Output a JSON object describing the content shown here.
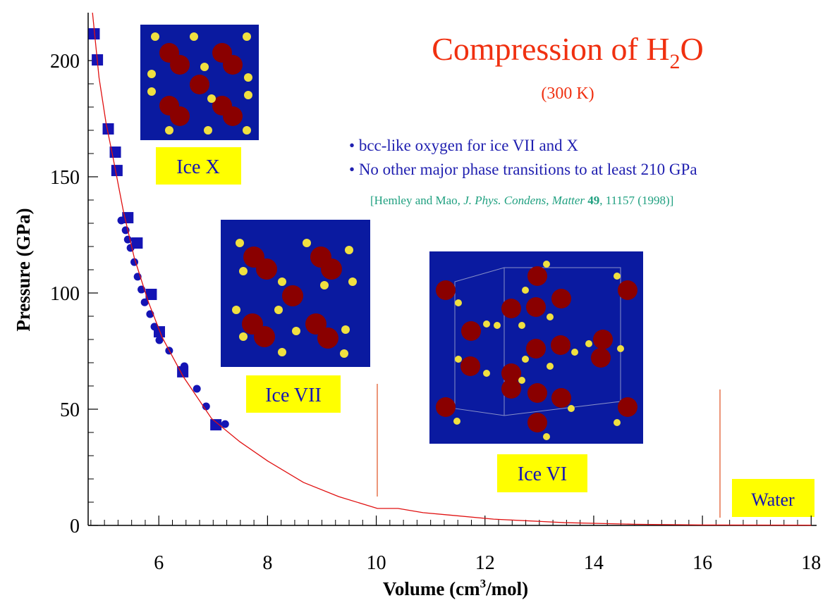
{
  "chart_data": {
    "type": "scatter",
    "title": [
      "Compression of H",
      "2",
      "O"
    ],
    "subtitle": "(300 K)",
    "bullets": [
      "bcc-like oxygen for ice VII and X",
      "No other major phase transitions to at least 210 GPa"
    ],
    "citation": [
      "[Hemley and Mao, ",
      "J. Phys. Condens, Matter",
      " 49",
      ", 11157 (1998)]"
    ],
    "xlabel": [
      "Volume (cm",
      "3",
      "/mol)"
    ],
    "ylabel": "Pressure (GPa)",
    "annotations": [
      "Ice X",
      "Ice VII",
      "Ice VI",
      "Water"
    ],
    "xlim": [
      4.7,
      18.1
    ],
    "ylim": [
      0,
      220
    ],
    "xticks": [
      6,
      8,
      10,
      12,
      14,
      16,
      18
    ],
    "yticks": [
      0,
      50,
      100,
      150,
      200
    ],
    "xminorticks": [
      4.75,
      5,
      5.25,
      5.5,
      5.75,
      6.25,
      6.5,
      6.75,
      7,
      7.25,
      7.5,
      7.75,
      8.25,
      8.5,
      8.75,
      9,
      9.25,
      9.5,
      9.75,
      10.25,
      10.5,
      10.75,
      11,
      11.25,
      11.5,
      11.75,
      12.25,
      12.5,
      12.75,
      13,
      13.25,
      13.5,
      13.75,
      14.25,
      14.5,
      14.75,
      15,
      15.25,
      15.5,
      15.75,
      16.25,
      16.5,
      16.75,
      17,
      17.25,
      17.5,
      17.75
    ],
    "yminorticks": [
      10,
      20,
      30,
      40,
      60,
      70,
      80,
      90,
      110,
      120,
      130,
      140,
      160,
      170,
      180,
      190,
      210
    ],
    "series": [
      {
        "type": "scatter",
        "marker": "square",
        "color": "#1414b4",
        "x": [
          4.81,
          4.87,
          5.07,
          5.2,
          5.23,
          5.43,
          5.6,
          5.86,
          6.01,
          6.44,
          7.05
        ],
        "values": [
          211.5,
          200.3,
          170.6,
          160.6,
          152.7,
          132.4,
          121.5,
          99.4,
          83.3,
          66.1,
          43.3
        ]
      },
      {
        "type": "scatter",
        "marker": "circle",
        "color": "#1414b4",
        "x": [
          5.31,
          5.39,
          5.43,
          5.48,
          5.55,
          5.61,
          5.68,
          5.74,
          5.84,
          5.92,
          6.01,
          6.19,
          6.47,
          6.7,
          6.87,
          7.22
        ],
        "values": [
          131.2,
          127,
          123,
          119.4,
          113.3,
          107,
          101.5,
          96,
          90.9,
          85.5,
          79.7,
          75.2,
          68.5,
          58.8,
          51.2,
          43.6
        ]
      },
      {
        "type": "line",
        "color": "#e01010",
        "x": [
          4.78,
          4.9,
          5.03,
          5.16,
          5.35,
          5.55,
          5.81,
          6.06,
          6.45,
          6.97,
          7.49,
          8.01,
          8.66,
          9.31,
          10.02,
          10.4,
          10.86,
          12.16,
          13.46,
          14.76,
          16.05,
          18
        ],
        "values": [
          220.6,
          192.7,
          173,
          158,
          135,
          115,
          96,
          81,
          64,
          46,
          36,
          27.6,
          18.5,
          12.4,
          7.3,
          7.3,
          5.5,
          2.7,
          1.2,
          0.5,
          0.2,
          0.1
        ]
      }
    ]
  }
}
